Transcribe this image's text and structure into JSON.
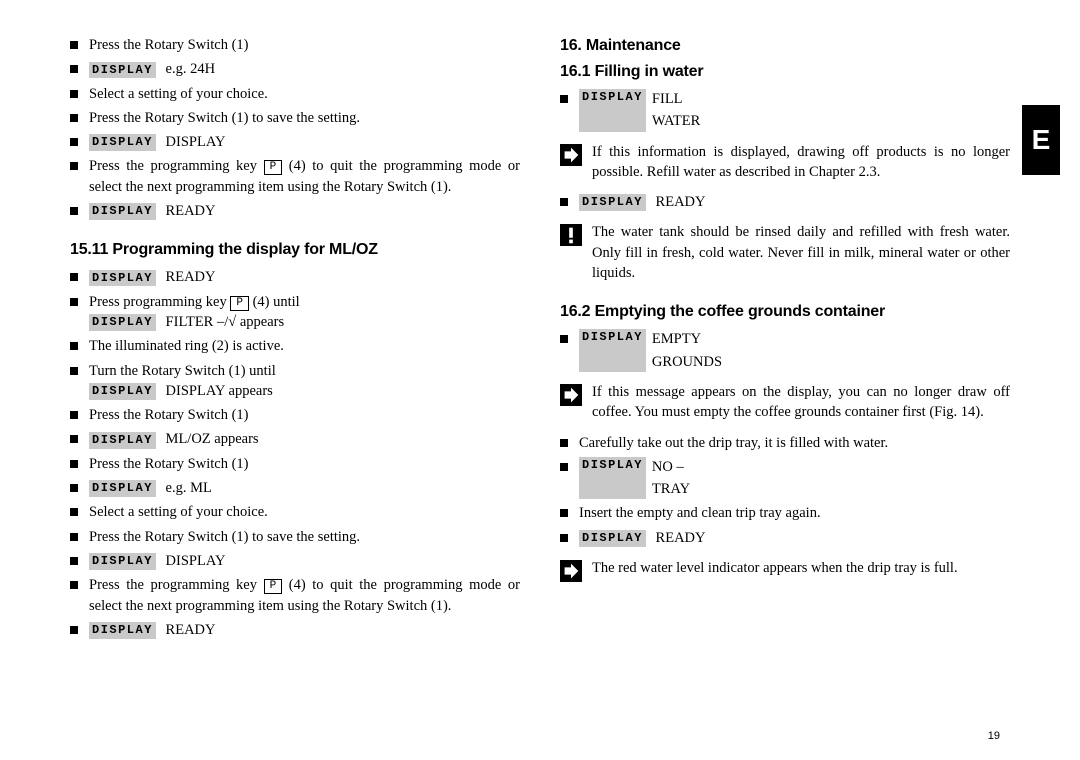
{
  "tab_letter": "E",
  "page_number": "19",
  "display_label": "DISPLAY",
  "pkey_label": "P",
  "left": {
    "items_top": [
      "Press the Rotary Switch (1)",
      {
        "display": true,
        "text": "e.g. 24H"
      },
      "Select a setting of your choice.",
      "Press the Rotary Switch (1) to save the setting.",
      {
        "display": true,
        "text": "DISPLAY"
      },
      {
        "pkey": true,
        "before": "Press the programming key ",
        "after": " (4) to quit the programming mode or select the next programming item using the Rotary Switch (1)."
      },
      {
        "display": true,
        "text": "READY"
      }
    ],
    "heading_1511": "15.11 Programming the display for ML/OZ",
    "items_1511": [
      {
        "display": true,
        "text": "READY"
      },
      {
        "pkey_line": true,
        "l1_before": "Press programming key ",
        "l1_after": " (4) until",
        "l2_display": true,
        "l2_text": "FILTER –/√ appears"
      },
      "The illuminated ring (2) is active.",
      {
        "two_line": true,
        "l1": "Turn the Rotary Switch (1) until",
        "l2_display": true,
        "l2_text": "DISPLAY appears"
      },
      "Press the Rotary Switch (1)",
      {
        "display": true,
        "text": "ML/OZ appears"
      },
      "Press the Rotary Switch (1)",
      {
        "display": true,
        "text": "e.g. ML"
      },
      "Select a setting of your choice.",
      "Press the Rotary Switch (1) to save the setting.",
      {
        "display": true,
        "text": "DISPLAY"
      },
      {
        "pkey": true,
        "before": "Press the programming key ",
        "after": " (4) to quit the programming mode or select the next programming item using the Rotary Switch (1)."
      },
      {
        "display": true,
        "text": "READY"
      }
    ]
  },
  "right": {
    "heading_16": "16. Maintenance",
    "heading_161": "16.1 Filling in water",
    "items_161a": [
      {
        "display": true,
        "multiline": [
          "FILL",
          "WATER"
        ]
      }
    ],
    "note_161a": "If this information is displayed, drawing off products is no longer possible. Refill water as described in Chapter 2.3.",
    "items_161b": [
      {
        "display": true,
        "text": "READY"
      }
    ],
    "warn_161": "The water tank should be rinsed daily and refilled with fresh water. Only fill in fresh, cold water. Never fill in milk, mineral water or other liquids.",
    "heading_162": "16.2 Emptying the coffee grounds container",
    "items_162a": [
      {
        "display": true,
        "multiline": [
          "EMPTY",
          "GROUNDS"
        ]
      }
    ],
    "note_162a": "If this message appears on the display, you can no longer draw off coffee. You must empty the coffee grounds container first (Fig. 14).",
    "items_162b": [
      "Carefully take out the drip tray, it is filled with water.",
      {
        "display": true,
        "multiline": [
          "NO –",
          "TRAY"
        ]
      },
      "Insert the empty and clean trip tray again.",
      {
        "display": true,
        "text": "READY"
      }
    ],
    "note_162b": "The red water level indicator appears when the drip tray is full."
  }
}
